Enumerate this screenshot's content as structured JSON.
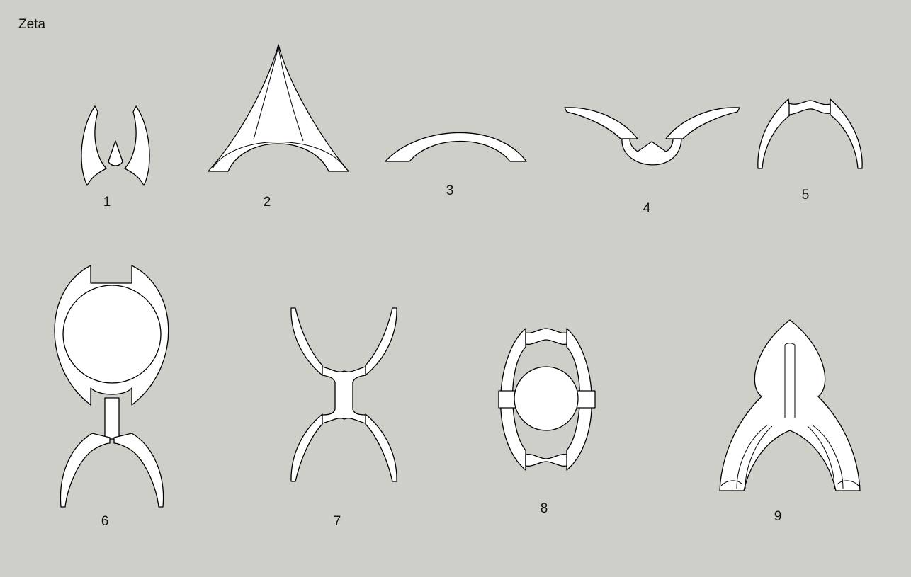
{
  "title": "Zeta",
  "figures": [
    {
      "label": "1"
    },
    {
      "label": "2"
    },
    {
      "label": "3"
    },
    {
      "label": "4"
    },
    {
      "label": "5"
    },
    {
      "label": "6"
    },
    {
      "label": "7"
    },
    {
      "label": "8"
    },
    {
      "label": "9"
    }
  ]
}
